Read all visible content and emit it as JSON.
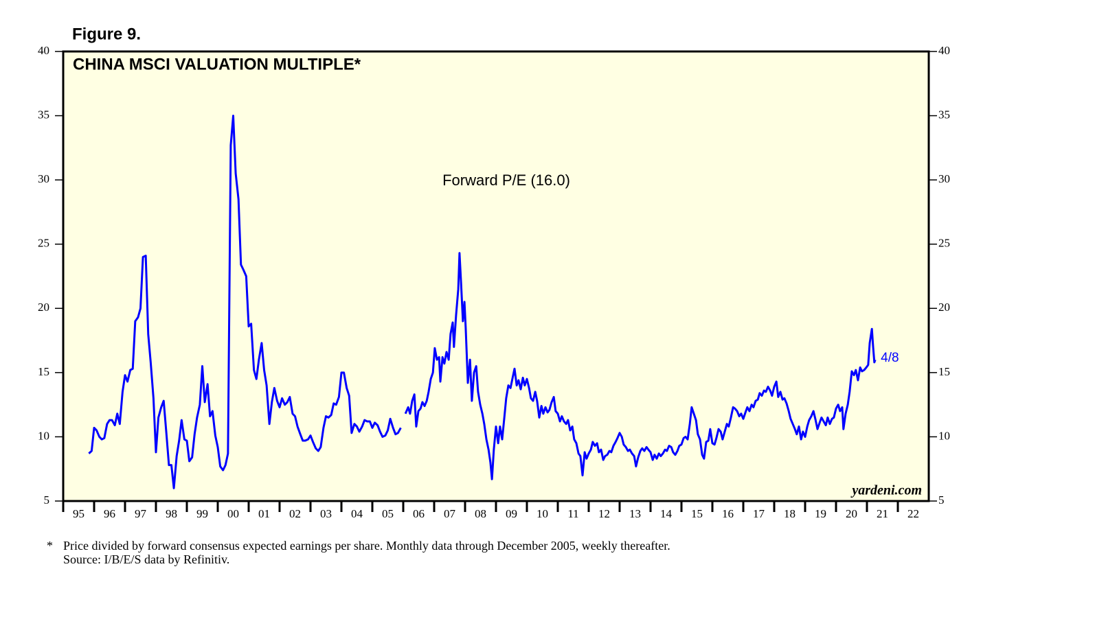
{
  "chart_data": {
    "type": "line",
    "figure_label": "Figure 9.",
    "title": "CHINA MSCI VALUATION MULTIPLE*",
    "annotation": "Forward P/E (16.0)",
    "end_label": "4/8",
    "source_brand": "yardeni.com",
    "footnote_marker": "*",
    "footnotes": [
      "Price divided by forward consensus expected earnings per share. Monthly data through December 2005, weekly thereafter.",
      "Source: I/B/E/S data by Refinitiv."
    ],
    "color": "#0000ff",
    "background": "#ffffe3",
    "xlim": [
      1995,
      2023
    ],
    "ylim": [
      5,
      40
    ],
    "yticks": [
      5,
      10,
      15,
      20,
      25,
      30,
      35,
      40
    ],
    "xticks": [
      {
        "value": 1995,
        "label": "95"
      },
      {
        "value": 1996,
        "label": "96"
      },
      {
        "value": 1997,
        "label": "97"
      },
      {
        "value": 1998,
        "label": "98"
      },
      {
        "value": 1999,
        "label": "99"
      },
      {
        "value": 2000,
        "label": "00"
      },
      {
        "value": 2001,
        "label": "01"
      },
      {
        "value": 2002,
        "label": "02"
      },
      {
        "value": 2003,
        "label": "03"
      },
      {
        "value": 2004,
        "label": "04"
      },
      {
        "value": 2005,
        "label": "05"
      },
      {
        "value": 2006,
        "label": "06"
      },
      {
        "value": 2007,
        "label": "07"
      },
      {
        "value": 2008,
        "label": "08"
      },
      {
        "value": 2009,
        "label": "09"
      },
      {
        "value": 2010,
        "label": "10"
      },
      {
        "value": 2011,
        "label": "11"
      },
      {
        "value": 2012,
        "label": "12"
      },
      {
        "value": 2013,
        "label": "13"
      },
      {
        "value": 2014,
        "label": "14"
      },
      {
        "value": 2015,
        "label": "15"
      },
      {
        "value": 2016,
        "label": "16"
      },
      {
        "value": 2017,
        "label": "17"
      },
      {
        "value": 2018,
        "label": "18"
      },
      {
        "value": 2019,
        "label": "19"
      },
      {
        "value": 2020,
        "label": "20"
      },
      {
        "value": 2021,
        "label": "21"
      },
      {
        "value": 2022,
        "label": "22"
      }
    ],
    "x": [
      1995.83,
      1995.92,
      1996.0,
      1996.08,
      1996.17,
      1996.25,
      1996.33,
      1996.42,
      1996.5,
      1996.58,
      1996.67,
      1996.75,
      1996.83,
      1996.92,
      1997.0,
      1997.08,
      1997.17,
      1997.25,
      1997.33,
      1997.42,
      1997.5,
      1997.58,
      1997.67,
      1997.75,
      1997.83,
      1997.92,
      1998.0,
      1998.08,
      1998.17,
      1998.25,
      1998.33,
      1998.42,
      1998.5,
      1998.58,
      1998.67,
      1998.75,
      1998.83,
      1998.92,
      1999.0,
      1999.08,
      1999.17,
      1999.25,
      1999.33,
      1999.42,
      1999.5,
      1999.58,
      1999.67,
      1999.75,
      1999.83,
      1999.92,
      2000.0,
      2000.08,
      2000.17,
      2000.25,
      2000.33,
      2000.42,
      2000.5,
      2000.58,
      2000.67,
      2000.75,
      2000.83,
      2000.92,
      2001.0,
      2001.08,
      2001.17,
      2001.25,
      2001.33,
      2001.42,
      2001.5,
      2001.58,
      2001.67,
      2001.75,
      2001.83,
      2001.92,
      2002.0,
      2002.08,
      2002.17,
      2002.25,
      2002.33,
      2002.42,
      2002.5,
      2002.58,
      2002.67,
      2002.75,
      2002.83,
      2002.92,
      2003.0,
      2003.08,
      2003.17,
      2003.25,
      2003.33,
      2003.42,
      2003.5,
      2003.58,
      2003.67,
      2003.75,
      2003.83,
      2003.92,
      2004.0,
      2004.08,
      2004.17,
      2004.25,
      2004.33,
      2004.42,
      2004.5,
      2004.58,
      2004.67,
      2004.75,
      2004.83,
      2004.92,
      2005.0,
      2005.08,
      2005.17,
      2005.25,
      2005.33,
      2005.42,
      2005.5,
      2005.58,
      2005.67,
      2005.75,
      2005.83,
      2005.92,
      2006.0,
      2006.07,
      2006.16,
      2006.22,
      2006.29,
      2006.36,
      2006.42,
      2006.49,
      2006.56,
      2006.62,
      2006.69,
      2006.76,
      2006.82,
      2006.89,
      2006.96,
      2007.02,
      2007.09,
      2007.16,
      2007.2,
      2007.27,
      2007.33,
      2007.4,
      2007.47,
      2007.53,
      2007.6,
      2007.64,
      2007.71,
      2007.78,
      2007.82,
      2007.87,
      2007.93,
      2007.98,
      2008.02,
      2008.09,
      2008.16,
      2008.22,
      2008.29,
      2008.36,
      2008.42,
      2008.49,
      2008.56,
      2008.62,
      2008.69,
      2008.76,
      2008.82,
      2008.87,
      2008.93,
      2009.0,
      2009.07,
      2009.13,
      2009.2,
      2009.27,
      2009.33,
      2009.4,
      2009.47,
      2009.53,
      2009.6,
      2009.67,
      2009.73,
      2009.8,
      2009.87,
      2009.93,
      2010.0,
      2010.07,
      2010.13,
      2010.2,
      2010.27,
      2010.33,
      2010.4,
      2010.47,
      2010.53,
      2010.6,
      2010.67,
      2010.73,
      2010.8,
      2010.87,
      2010.93,
      2011.0,
      2011.07,
      2011.13,
      2011.2,
      2011.27,
      2011.33,
      2011.4,
      2011.47,
      2011.53,
      2011.6,
      2011.67,
      2011.73,
      2011.8,
      2011.87,
      2011.93,
      2012.0,
      2012.07,
      2012.13,
      2012.2,
      2012.27,
      2012.33,
      2012.4,
      2012.47,
      2012.53,
      2012.6,
      2012.67,
      2012.73,
      2012.8,
      2012.87,
      2012.93,
      2013.0,
      2013.07,
      2013.13,
      2013.2,
      2013.27,
      2013.33,
      2013.4,
      2013.47,
      2013.53,
      2013.6,
      2013.67,
      2013.73,
      2013.8,
      2013.87,
      2013.93,
      2014.0,
      2014.07,
      2014.13,
      2014.2,
      2014.27,
      2014.33,
      2014.4,
      2014.47,
      2014.53,
      2014.6,
      2014.67,
      2014.73,
      2014.8,
      2014.87,
      2014.93,
      2015.0,
      2015.07,
      2015.13,
      2015.2,
      2015.27,
      2015.33,
      2015.4,
      2015.47,
      2015.53,
      2015.6,
      2015.67,
      2015.73,
      2015.8,
      2015.87,
      2015.93,
      2016.0,
      2016.07,
      2016.13,
      2016.2,
      2016.27,
      2016.33,
      2016.4,
      2016.47,
      2016.53,
      2016.6,
      2016.67,
      2016.73,
      2016.8,
      2016.87,
      2016.93,
      2017.0,
      2017.07,
      2017.13,
      2017.2,
      2017.27,
      2017.33,
      2017.4,
      2017.47,
      2017.53,
      2017.6,
      2017.67,
      2017.73,
      2017.8,
      2017.87,
      2017.93,
      2018.0,
      2018.07,
      2018.13,
      2018.2,
      2018.27,
      2018.33,
      2018.4,
      2018.47,
      2018.53,
      2018.6,
      2018.67,
      2018.73,
      2018.8,
      2018.87,
      2018.93,
      2019.0,
      2019.07,
      2019.13,
      2019.2,
      2019.27,
      2019.33,
      2019.4,
      2019.47,
      2019.53,
      2019.6,
      2019.67,
      2019.73,
      2019.8,
      2019.87,
      2019.93,
      2020.0,
      2020.07,
      2020.13,
      2020.2,
      2020.24,
      2020.31,
      2020.38,
      2020.44,
      2020.51,
      2020.58,
      2020.64,
      2020.71,
      2020.78,
      2020.84,
      2020.91,
      2020.98,
      2021.04,
      2021.09,
      2021.16,
      2021.2,
      2021.24,
      2021.27
    ],
    "values": [
      8.7,
      8.9,
      10.7,
      10.5,
      10.0,
      9.8,
      9.9,
      11.0,
      11.3,
      11.3,
      10.9,
      11.8,
      11.0,
      13.5,
      14.8,
      14.3,
      15.2,
      15.3,
      19.0,
      19.3,
      20.0,
      24.0,
      24.1,
      18.0,
      15.8,
      13.0,
      8.8,
      11.5,
      12.3,
      12.8,
      10.5,
      7.8,
      7.8,
      6.0,
      8.5,
      9.7,
      11.3,
      9.8,
      9.7,
      8.1,
      8.4,
      10.2,
      11.5,
      12.5,
      15.5,
      12.7,
      14.1,
      11.6,
      12.0,
      10.1,
      9.2,
      7.7,
      7.4,
      7.8,
      8.7,
      32.7,
      35.0,
      30.5,
      28.5,
      23.4,
      23.0,
      22.5,
      18.6,
      18.8,
      15.2,
      14.5,
      16.0,
      17.3,
      15.2,
      14.0,
      11.0,
      12.7,
      13.8,
      12.8,
      12.3,
      13.0,
      12.5,
      12.7,
      13.1,
      11.8,
      11.6,
      10.8,
      10.2,
      9.7,
      9.7,
      9.8,
      10.1,
      9.6,
      9.1,
      8.9,
      9.2,
      10.7,
      11.6,
      11.5,
      11.7,
      12.6,
      12.5,
      13.1,
      15.0,
      15.0,
      13.8,
      13.2,
      10.3,
      11.0,
      10.8,
      10.4,
      10.8,
      11.3,
      11.2,
      11.2,
      10.7,
      11.1,
      10.9,
      10.4,
      10.0,
      10.1,
      10.5,
      11.4,
      10.7,
      10.2,
      10.3,
      10.7,
      null,
      11.8,
      12.3,
      11.8,
      12.8,
      13.3,
      10.8,
      12.0,
      12.2,
      12.7,
      12.4,
      12.8,
      13.5,
      14.5,
      15.0,
      16.9,
      16.0,
      16.2,
      14.3,
      16.2,
      15.7,
      16.6,
      16.0,
      18.0,
      18.9,
      17.0,
      19.5,
      21.5,
      24.3,
      22.0,
      19.0,
      20.5,
      18.5,
      14.2,
      16.0,
      12.8,
      15.0,
      15.5,
      13.5,
      12.5,
      11.8,
      11.0,
      9.8,
      9.0,
      8.0,
      6.7,
      9.0,
      10.8,
      9.5,
      10.8,
      9.8,
      11.5,
      13.0,
      14.0,
      13.8,
      14.5,
      15.3,
      14.0,
      14.4,
      13.7,
      14.6,
      14.0,
      14.5,
      13.8,
      13.0,
      12.8,
      13.5,
      12.8,
      11.5,
      12.4,
      11.8,
      12.3,
      11.9,
      12.1,
      12.7,
      13.1,
      12.0,
      11.8,
      11.2,
      11.6,
      11.2,
      11.0,
      11.3,
      10.5,
      10.8,
      9.8,
      9.5,
      8.7,
      8.5,
      7.0,
      8.8,
      8.3,
      8.7,
      9.0,
      9.6,
      9.3,
      9.5,
      8.8,
      9.0,
      8.2,
      8.5,
      8.6,
      8.9,
      8.8,
      9.3,
      9.6,
      9.9,
      10.3,
      10.0,
      9.4,
      9.2,
      8.9,
      9.0,
      8.7,
      8.5,
      7.7,
      8.4,
      8.9,
      9.1,
      8.9,
      9.2,
      9.0,
      8.8,
      8.2,
      8.6,
      8.3,
      8.7,
      8.5,
      8.7,
      9.0,
      8.9,
      9.3,
      9.2,
      8.8,
      8.6,
      8.9,
      9.3,
      9.4,
      9.9,
      10.0,
      9.8,
      11.0,
      12.3,
      11.8,
      11.3,
      10.2,
      9.8,
      8.6,
      8.3,
      9.6,
      9.7,
      10.6,
      9.5,
      9.4,
      9.9,
      10.6,
      10.4,
      9.8,
      10.4,
      11.0,
      10.8,
      11.5,
      12.3,
      12.2,
      12.0,
      11.6,
      11.8,
      11.4,
      11.9,
      12.3,
      12.0,
      12.5,
      12.3,
      12.8,
      12.9,
      13.4,
      13.2,
      13.6,
      13.5,
      13.9,
      13.6,
      13.2,
      13.9,
      14.3,
      13.1,
      13.5,
      12.9,
      13.0,
      12.6,
      12.0,
      11.4,
      11.0,
      10.6,
      10.2,
      10.8,
      9.8,
      10.4,
      10.0,
      10.8,
      11.3,
      11.6,
      12.0,
      11.4,
      10.6,
      11.1,
      11.5,
      11.2,
      10.9,
      11.5,
      11.0,
      11.4,
      11.5,
      12.2,
      12.5,
      12.0,
      12.3,
      10.6,
      11.8,
      12.5,
      13.5,
      15.1,
      14.8,
      15.2,
      14.4,
      15.4,
      15.1,
      15.2,
      15.4,
      15.6,
      17.3,
      18.4,
      17.0,
      15.8,
      16.0
    ]
  }
}
